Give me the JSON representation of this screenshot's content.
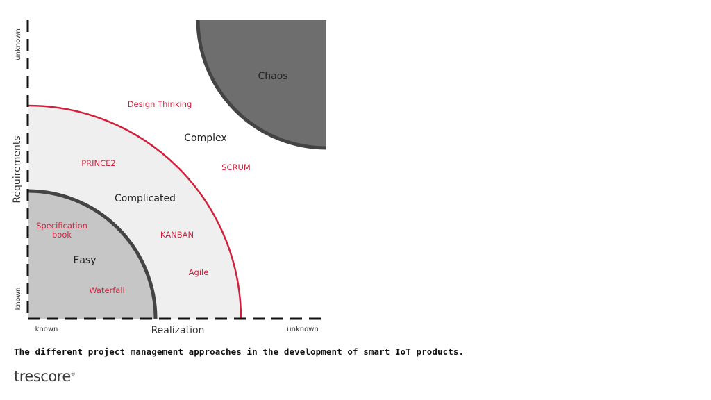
{
  "colors": {
    "accent": "#d21f3c",
    "chaos_fill": "#6e6e6e",
    "easy_fill": "#c6c6c6",
    "complicated_fill": "#efefef",
    "arc_dark": "#444444",
    "axis": "#111111"
  },
  "regions": {
    "chaos": "Chaos",
    "complex": "Complex",
    "complicated": "Complicated",
    "easy": "Easy"
  },
  "methods": {
    "design_thinking": "Design Thinking",
    "scrum": "SCRUM",
    "prince2": "PRINCE2",
    "kanban": "KANBAN",
    "agile": "Agile",
    "spec_line1": "Specification",
    "spec_line2": "book",
    "waterfall": "Waterfall"
  },
  "axes": {
    "y_title": "Requirements",
    "y_high": "unknown",
    "y_low": "known",
    "x_title": "Realization",
    "x_low": "known",
    "x_high": "unknown"
  },
  "caption": "The different project management approaches in the development of smart IoT products.",
  "logo": {
    "text": "trescore",
    "mark": "®"
  }
}
